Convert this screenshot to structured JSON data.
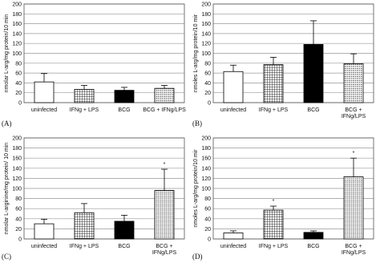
{
  "chart_data": [
    {
      "type": "bar",
      "panel_label": "(A)",
      "ylabel": "nmolar L-arg/mg protein/10 min",
      "categories": [
        "uninfected",
        "IFNg + LPS",
        "BCG",
        "BCG + IFNg/LPS"
      ],
      "values": [
        42,
        27,
        25,
        29
      ],
      "errors": [
        17,
        8,
        6,
        6
      ],
      "value_annotations": [
        null,
        null,
        null,
        null
      ],
      "fills": [
        "white",
        "hatch",
        "black",
        "dots"
      ],
      "ylim": [
        0,
        200
      ],
      "yticks": [
        0,
        20,
        40,
        60,
        80,
        100,
        120,
        140,
        160,
        180,
        200
      ],
      "grid": true
    },
    {
      "type": "bar",
      "panel_label": "(B)",
      "ylabel": "nmoles L-arg/mg protein/10 mir",
      "categories": [
        "uninfected",
        "IFNg + LPS",
        "BCG",
        "BCG +\nIFNg/LPS"
      ],
      "values": [
        63,
        77,
        118,
        79
      ],
      "errors": [
        13,
        15,
        48,
        20
      ],
      "value_annotations": [
        null,
        null,
        null,
        null
      ],
      "fills": [
        "white",
        "hatch",
        "black",
        "dots"
      ],
      "ylim": [
        0,
        200
      ],
      "yticks": [
        0,
        20,
        40,
        60,
        80,
        100,
        120,
        140,
        160,
        180,
        200
      ],
      "grid": true
    },
    {
      "type": "bar",
      "panel_label": "(C)",
      "ylabel": "nmolar L-arginine/mg protein/ 10 min",
      "categories": [
        "uninfected",
        "IFNg + LPS",
        "BCG",
        "BCG +\nIFNg/LPS"
      ],
      "values": [
        30,
        52,
        35,
        96
      ],
      "errors": [
        9,
        18,
        12,
        42
      ],
      "value_annotations": [
        null,
        null,
        null,
        "*"
      ],
      "fills": [
        "white",
        "hatch",
        "black",
        "dots"
      ],
      "ylim": [
        0,
        200
      ],
      "yticks": [
        0,
        20,
        40,
        60,
        80,
        100,
        120,
        140,
        160,
        180,
        200
      ],
      "grid": true
    },
    {
      "type": "bar",
      "panel_label": "(D)",
      "ylabel": "nmoles L-arg/mg protein/10 mir",
      "categories": [
        "uninfected",
        "IFNg + LPS",
        "BCG",
        "BCG +\nIFNg/LPS"
      ],
      "values": [
        12,
        57,
        13,
        123
      ],
      "errors": [
        4,
        8,
        3,
        37
      ],
      "value_annotations": [
        null,
        "*",
        null,
        "*"
      ],
      "fills": [
        "white",
        "hatch",
        "black",
        "dots"
      ],
      "ylim": [
        0,
        200
      ],
      "yticks": [
        0,
        20,
        40,
        60,
        80,
        100,
        120,
        140,
        160,
        180,
        200
      ],
      "grid": true
    }
  ]
}
